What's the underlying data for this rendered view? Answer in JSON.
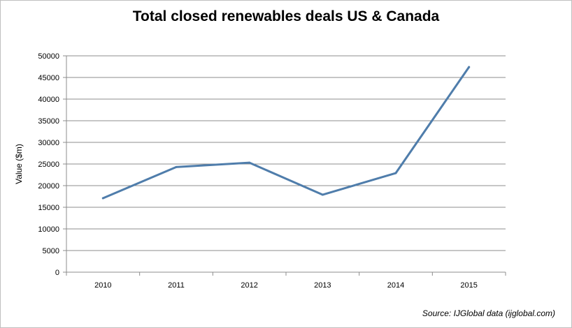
{
  "chart_data": {
    "type": "line",
    "title": "Total closed renewables deals US & Canada",
    "xlabel": "",
    "ylabel": "Value ($m)",
    "categories": [
      "2010",
      "2011",
      "2012",
      "2013",
      "2014",
      "2015"
    ],
    "series": [
      {
        "values": [
          17100,
          24300,
          25300,
          17900,
          22900,
          47400
        ],
        "color": "#4f7dab"
      }
    ],
    "ylim": [
      0,
      50000
    ],
    "yticks": [
      "0",
      "5000",
      "10000",
      "15000",
      "20000",
      "25000",
      "30000",
      "35000",
      "40000",
      "45000",
      "50000"
    ],
    "grid": true,
    "legend": "none",
    "source": "Source: IJGlobal data (ijglobal.com)"
  }
}
